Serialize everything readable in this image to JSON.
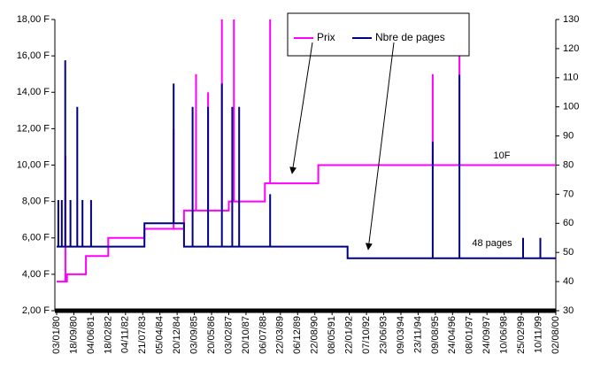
{
  "chart_data": {
    "type": "line",
    "xlim": [
      0,
      29
    ],
    "xticks": [
      {
        "value": 0,
        "label": "03/01/80"
      },
      {
        "value": 1,
        "label": "18/09/80"
      },
      {
        "value": 2,
        "label": "04/06/81"
      },
      {
        "value": 3,
        "label": "18/02/82"
      },
      {
        "value": 4,
        "label": "04/11/82"
      },
      {
        "value": 5,
        "label": "21/07/83"
      },
      {
        "value": 6,
        "label": "05/04/84"
      },
      {
        "value": 7,
        "label": "20/12/84"
      },
      {
        "value": 8,
        "label": "03/09/85"
      },
      {
        "value": 9,
        "label": "20/05/86"
      },
      {
        "value": 10,
        "label": "03/02/87"
      },
      {
        "value": 11,
        "label": "20/10/87"
      },
      {
        "value": 12,
        "label": "06/07/88"
      },
      {
        "value": 13,
        "label": "22/03/89"
      },
      {
        "value": 14,
        "label": "06/12/89"
      },
      {
        "value": 15,
        "label": "22/08/90"
      },
      {
        "value": 16,
        "label": "08/05/91"
      },
      {
        "value": 17,
        "label": "22/01/92"
      },
      {
        "value": 18,
        "label": "07/10/92"
      },
      {
        "value": 19,
        "label": "23/06/93"
      },
      {
        "value": 20,
        "label": "09/03/94"
      },
      {
        "value": 21,
        "label": "23/11/94"
      },
      {
        "value": 22,
        "label": "09/08/95"
      },
      {
        "value": 23,
        "label": "24/04/96"
      },
      {
        "value": 24,
        "label": "08/01/97"
      },
      {
        "value": 25,
        "label": "24/09/97"
      },
      {
        "value": 26,
        "label": "10/06/98"
      },
      {
        "value": 27,
        "label": "25/02/99"
      },
      {
        "value": 28,
        "label": "10/11/99"
      },
      {
        "value": 29,
        "label": "02/08/00"
      }
    ],
    "ylim": [
      2,
      18
    ],
    "yticks": [
      {
        "value": 2,
        "label": "2,00 F"
      },
      {
        "value": 4,
        "label": "4,00 F"
      },
      {
        "value": 6,
        "label": "6,00 F"
      },
      {
        "value": 8,
        "label": "8,00 F"
      },
      {
        "value": 10,
        "label": "10,00 F"
      },
      {
        "value": 12,
        "label": "12,00 F"
      },
      {
        "value": 14,
        "label": "14,00 F"
      },
      {
        "value": 16,
        "label": "16,00 F"
      },
      {
        "value": 18,
        "label": "18,00 F"
      }
    ],
    "y2lim": [
      30,
      130
    ],
    "y2ticks": [
      30,
      40,
      50,
      60,
      70,
      80,
      90,
      100,
      110,
      120,
      130
    ],
    "legend": "top-right",
    "annotations": [
      "10F",
      "48 pages"
    ],
    "series": [
      {
        "name": "Prix",
        "color": "#ff00ff",
        "x": [
          0,
          0.51,
          0.51,
          0.51,
          0.6,
          0.6,
          1.7,
          1.7,
          3.0,
          3.0,
          5.1,
          5.1,
          6.8,
          6.8,
          6.8,
          7.4,
          7.4,
          8.1,
          8.1,
          8.1,
          8.8,
          8.8,
          8.8,
          9.6,
          9.6,
          9.6,
          10.0,
          10.0,
          10.3,
          10.3,
          10.3,
          12.1,
          12.1,
          12.4,
          12.4,
          12.4,
          15.2,
          15.2,
          21.85,
          21.85,
          21.85,
          23.4,
          23.4,
          23.4,
          29
        ],
        "values": [
          3.6,
          3.6,
          10.5,
          3.6,
          3.6,
          4.0,
          4.0,
          5.0,
          5.0,
          6.0,
          6.0,
          6.5,
          6.5,
          12,
          6.5,
          6.5,
          7.5,
          7.5,
          15,
          7.5,
          7.5,
          14,
          7.5,
          7.5,
          18,
          7.5,
          7.5,
          8.0,
          8.0,
          18,
          8.0,
          8.0,
          9.0,
          9.0,
          18,
          9.0,
          9.0,
          10.0,
          10.0,
          15,
          10.0,
          10.0,
          17,
          10.0,
          10.0
        ]
      },
      {
        "name": "Nbre de pages",
        "color": "#000080",
        "axis": "y2",
        "x": [
          0,
          0.1,
          0.1,
          0.1,
          0.3,
          0.3,
          0.3,
          0.5,
          0.5,
          0.5,
          0.8,
          0.8,
          0.8,
          1.2,
          1.2,
          1.2,
          1.5,
          1.5,
          1.5,
          2.0,
          2.0,
          2.0,
          5.1,
          5.1,
          6.8,
          6.8,
          6.8,
          7.4,
          7.4,
          7.9,
          7.9,
          7.9,
          8.8,
          8.8,
          8.8,
          9.6,
          9.6,
          9.6,
          10.2,
          10.2,
          10.2,
          10.6,
          10.6,
          10.6,
          12.4,
          12.4,
          12.4,
          16.9,
          16.9,
          21.85,
          21.85,
          21.85,
          23.4,
          23.4,
          23.4,
          27.1,
          27.1,
          27.1,
          28.1,
          28.1,
          28.1,
          29
        ],
        "values": [
          52,
          52,
          68,
          52,
          52,
          68,
          52,
          52,
          116,
          52,
          52,
          68,
          52,
          52,
          100,
          52,
          52,
          68,
          52,
          52,
          68,
          52,
          52,
          60,
          60,
          108,
          60,
          60,
          52,
          52,
          100,
          52,
          52,
          100,
          52,
          52,
          108,
          52,
          52,
          100,
          52,
          52,
          100,
          52,
          52,
          70,
          52,
          52,
          48,
          48,
          88,
          48,
          48,
          111,
          48,
          48,
          55,
          48,
          48,
          55,
          48,
          48
        ]
      }
    ]
  }
}
